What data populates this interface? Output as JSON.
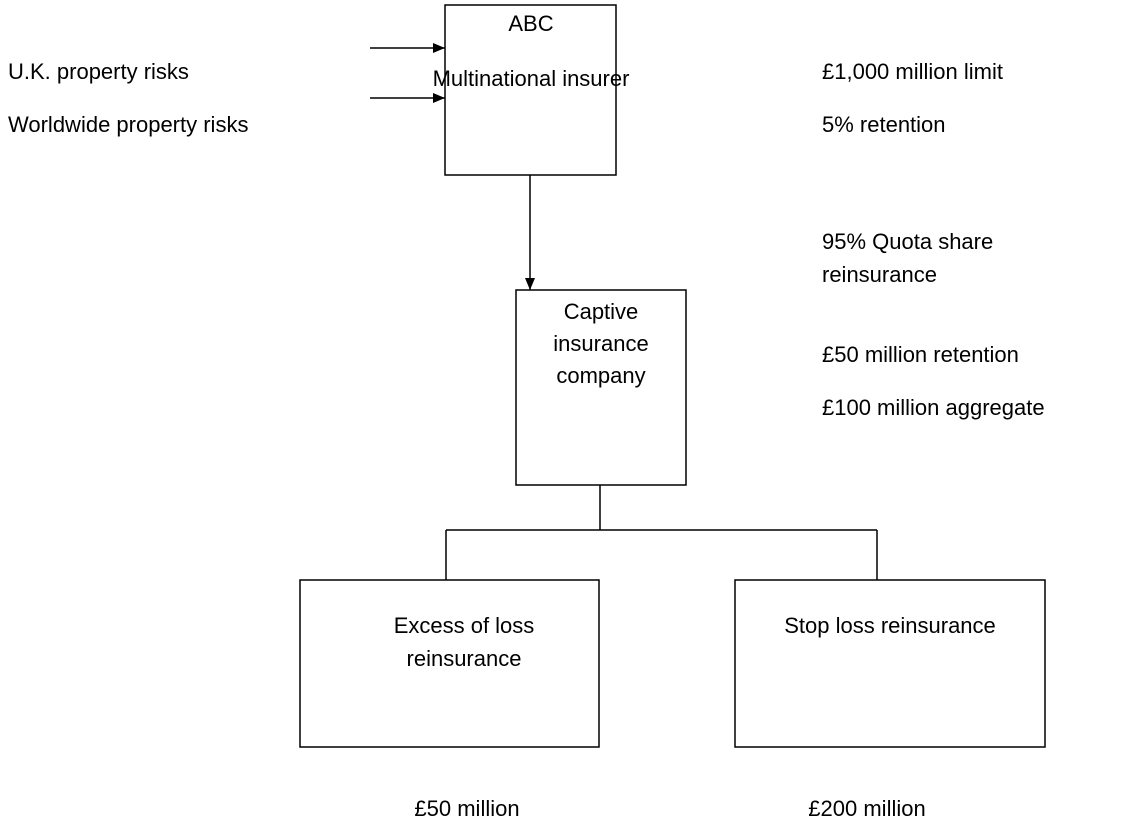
{
  "inputs": [
    "U.K. property risks",
    "Worldwide property risks"
  ],
  "nodes": [
    {
      "label": [
        "ABC",
        "Multinational insurer"
      ]
    },
    {
      "label": [
        "Captive",
        "insurance",
        "company"
      ]
    },
    {
      "label": [
        "Excess of loss",
        "reinsurance"
      ]
    },
    {
      "label": [
        "Stop loss reinsurance"
      ]
    }
  ],
  "annotations": {
    "insurer_terms": [
      "£1,000 million limit",
      "5% retention"
    ],
    "quota_share": [
      "95% Quota share",
      "reinsurance"
    ],
    "captive_terms": [
      "£50 million retention",
      "£100 million aggregate"
    ],
    "excess_of_loss_amount": "£50 million",
    "stop_loss_amount": "£200 million"
  }
}
